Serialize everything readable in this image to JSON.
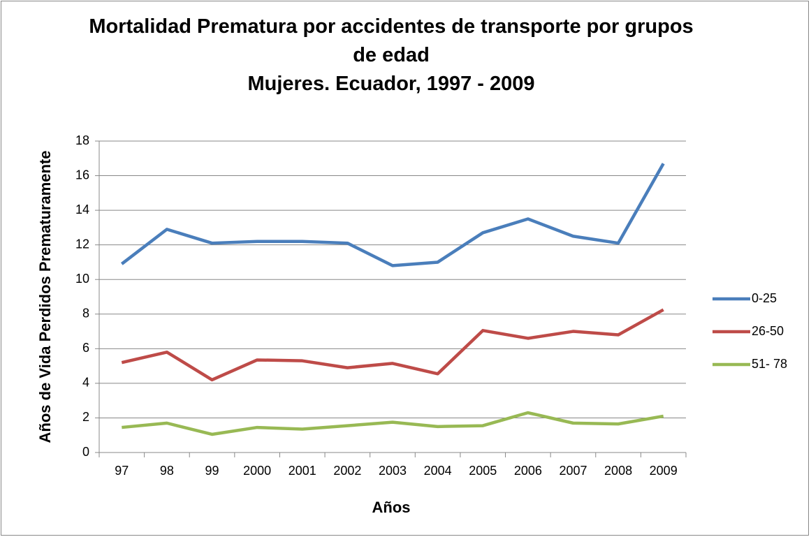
{
  "chart_data": {
    "type": "line",
    "title": "Mortalidad Prematura por accidentes de transporte por grupos de edad",
    "subtitle": "Mujeres. Ecuador, 1997 - 2009",
    "x_label": "Años",
    "y_label": "Años de Vida Perdidos Prematuramente",
    "categories": [
      "97",
      "98",
      "99",
      "2000",
      "2001",
      "2002",
      "2003",
      "2004",
      "2005",
      "2006",
      "2007",
      "2008",
      "2009"
    ],
    "series": [
      {
        "name": "0-25",
        "color": "#4a7ebb",
        "values": [
          10.9,
          12.9,
          12.1,
          12.2,
          12.2,
          12.1,
          10.8,
          11.0,
          12.7,
          13.5,
          12.5,
          12.1,
          16.7
        ]
      },
      {
        "name": "26-50",
        "color": "#be4b48",
        "values": [
          5.2,
          5.8,
          4.2,
          5.35,
          5.3,
          4.9,
          5.15,
          4.55,
          7.05,
          6.6,
          7.0,
          6.8,
          8.25
        ]
      },
      {
        "name": "51- 78",
        "color": "#98b954",
        "values": [
          1.45,
          1.7,
          1.05,
          1.45,
          1.35,
          1.55,
          1.75,
          1.5,
          1.55,
          2.3,
          1.7,
          1.65,
          2.1
        ]
      }
    ],
    "ylim": [
      0,
      18
    ],
    "yticks": [
      0,
      2,
      4,
      6,
      8,
      10,
      12,
      14,
      16,
      18
    ],
    "grid": true,
    "legend": "right"
  }
}
